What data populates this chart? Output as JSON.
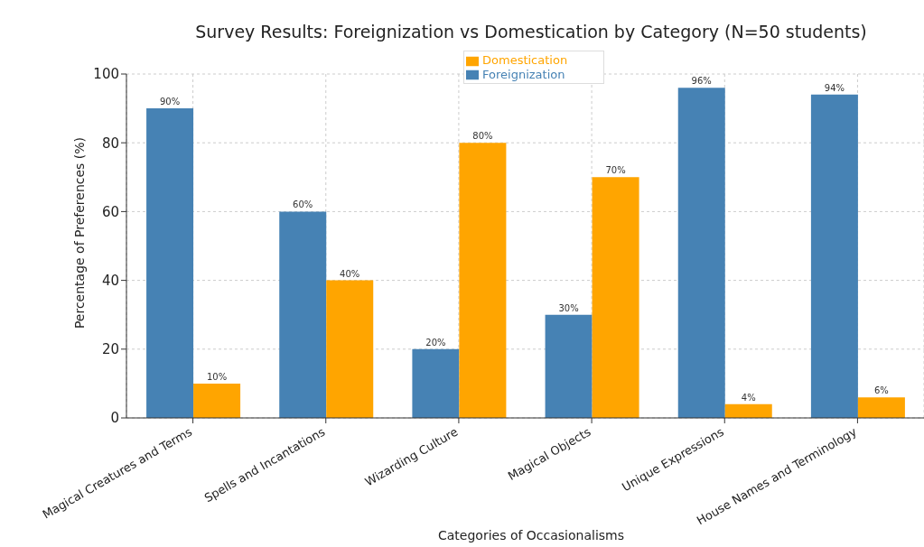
{
  "chart_data": {
    "type": "bar",
    "title": "Survey Results: Foreignization vs Domestication by Category (N=50 students)",
    "xlabel": "Categories of Occasionalisms",
    "ylabel": "Percentage of Preferences (%)",
    "categories": [
      "Magical Creatures and Terms",
      "Spells and Incantations",
      "Wizarding Culture",
      "Magical Objects",
      "Unique Expressions",
      "House Names and Terminology"
    ],
    "series": [
      {
        "name": "Foreignization",
        "color": "#4682b4",
        "values": [
          90,
          60,
          20,
          30,
          96,
          94
        ],
        "value_labels": [
          "90%",
          "60%",
          "20%",
          "30%",
          "96%",
          "94%"
        ]
      },
      {
        "name": "Domestication",
        "color": "#ffa500",
        "values": [
          10,
          40,
          80,
          70,
          4,
          6
        ],
        "value_labels": [
          "10%",
          "40%",
          "80%",
          "70%",
          "4%",
          "6%"
        ]
      }
    ],
    "ylim": [
      0,
      100
    ],
    "yticks": [
      0,
      20,
      40,
      60,
      80,
      100
    ],
    "grid": true,
    "legend": "top"
  }
}
